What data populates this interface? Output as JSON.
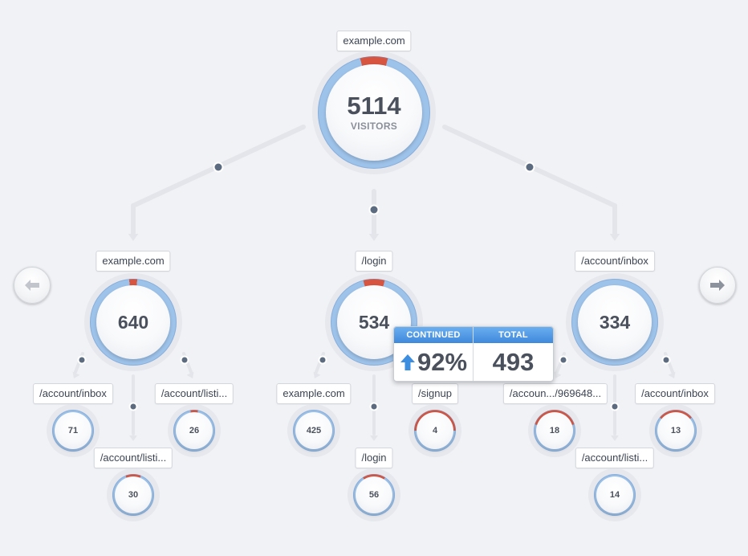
{
  "colors": {
    "ring_blue": "#9ec3ea",
    "ring_blue_dark": "#7fa8d6",
    "ring_red": "#d65440",
    "connector": "#e3e5ea",
    "dot": "#5d6b80",
    "arrow_blue": "#3d8de0"
  },
  "nav": {
    "prev_icon": "arrow-left-icon",
    "next_icon": "arrow-right-icon"
  },
  "root": {
    "label": "example.com",
    "value": "5114",
    "sublabel": "VISITORS",
    "red_fraction": 0.08
  },
  "level1": [
    {
      "label": "example.com",
      "value": "640",
      "red_fraction": 0.03,
      "children": [
        {
          "label": "/account/inbox",
          "value": "71",
          "red_fraction": 0
        },
        {
          "label": "/account/listi...",
          "value": "30",
          "red_fraction": 0.12
        },
        {
          "label": "/account/listi...",
          "value": "26",
          "red_fraction": 0.06
        }
      ]
    },
    {
      "label": "/login",
      "value": "534",
      "red_fraction": 0.08,
      "children": [
        {
          "label": "example.com",
          "value": "425",
          "red_fraction": 0
        },
        {
          "label": "/login",
          "value": "56",
          "red_fraction": 0.18
        },
        {
          "label": "/signup",
          "value": "4",
          "red_fraction": 0.5
        }
      ]
    },
    {
      "label": "/account/inbox",
      "value": "334",
      "red_fraction": 0,
      "children": [
        {
          "label": "/accoun.../969648...",
          "value": "18",
          "red_fraction": 0.4
        },
        {
          "label": "/account/listi...",
          "value": "14",
          "red_fraction": 0
        },
        {
          "label": "/account/inbox",
          "value": "13",
          "red_fraction": 0.28
        }
      ]
    }
  ],
  "tooltip": {
    "continued_label": "CONTINUED",
    "continued_value": "92%",
    "continued_icon": "arrow-up-icon",
    "total_label": "TOTAL",
    "total_value": "493"
  }
}
